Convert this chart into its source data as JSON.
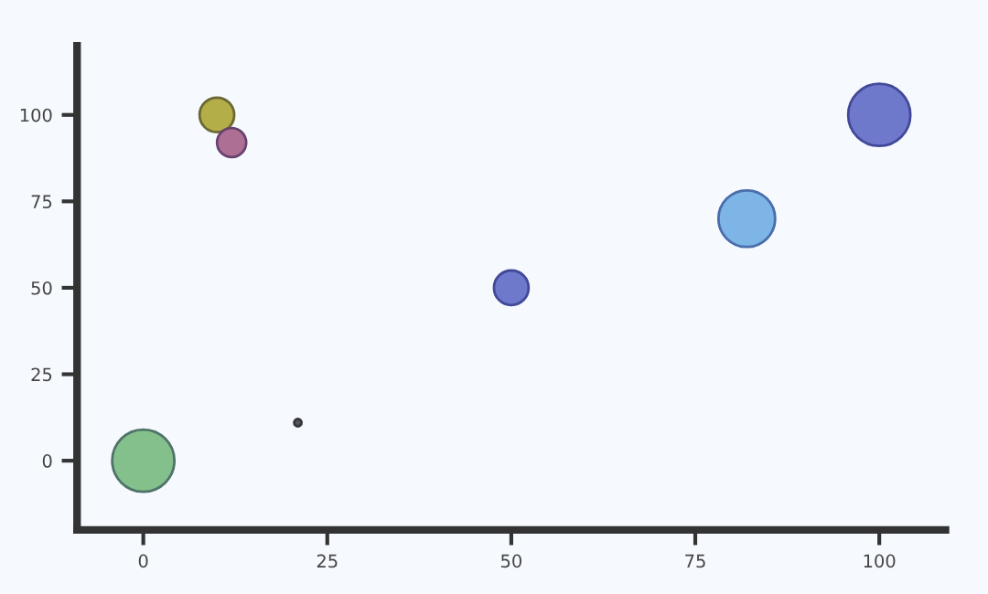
{
  "chart_data": {
    "type": "bubble",
    "x": [
      0,
      10,
      12,
      21,
      50,
      82,
      100
    ],
    "values": [
      0,
      100,
      92,
      11,
      50,
      70,
      100
    ],
    "sizes": [
      1,
      0.31,
      0.22,
      0.014,
      0.31,
      0.83,
      1
    ],
    "colors": [
      "#84c08c",
      "#b3ae48",
      "#ad7094",
      "#585858",
      "#6f79cb",
      "#7cb5e6",
      "#6f79cb"
    ],
    "xlim": [
      -9,
      109
    ],
    "ylim": [
      -20,
      120
    ],
    "xticks": [
      0,
      25,
      50,
      75,
      100
    ],
    "yticks": [
      0,
      25,
      50,
      75,
      100
    ],
    "grid": false,
    "legend": false
  }
}
